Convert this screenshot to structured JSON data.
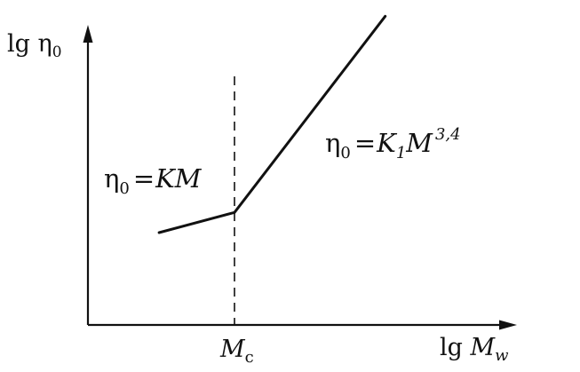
{
  "chart_data": {
    "type": "line",
    "title": "",
    "ylabel": {
      "base": "lg η",
      "sub": "0"
    },
    "xlabel": {
      "base": "lg ",
      "var": "M",
      "sub": "w"
    },
    "critical_mark": {
      "var": "M",
      "sub": "c"
    },
    "x_axis_label_text": "lg Mw",
    "y_axis_label_text": "lg η0",
    "xlim": [
      0,
      10
    ],
    "ylim": [
      0,
      10
    ],
    "grid": false,
    "series": [
      {
        "points": [
          {
            "x": 1.7,
            "y": 3.2
          },
          {
            "x": 3.5,
            "y": 3.9
          },
          {
            "x": 7.1,
            "y": 10.7
          }
        ]
      }
    ],
    "critical_x": 3.5,
    "annotations": [
      {
        "id": "low",
        "text": "η0 = KM",
        "parts": {
          "eta": "η",
          "sub": "0",
          "eq": "=",
          "rhs": "KM"
        }
      },
      {
        "id": "high",
        "text": "η0 = K1M3,4",
        "parts": {
          "eta": "η",
          "sub": "0",
          "eq": "=",
          "k": "K",
          "ksub": "1",
          "m": "M",
          "exp": "3,4"
        }
      }
    ]
  }
}
